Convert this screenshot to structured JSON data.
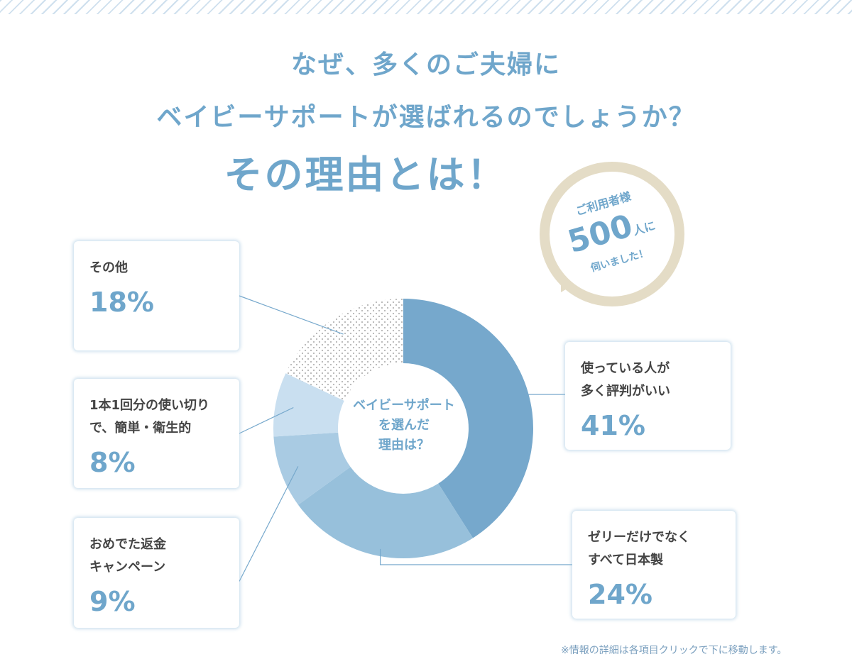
{
  "heading": {
    "line1": "なぜ、多くのご夫婦に",
    "line2": "ベイビーサポートが選ばれるのでしょうか？",
    "line3": "その理由とは！"
  },
  "badge": {
    "line1": "ご利用者様",
    "number": "500",
    "unit": "人に",
    "line3": "伺いました！"
  },
  "chart_data": {
    "type": "pie",
    "center_label": "ベイビーサポート\nを選んだ\n理由は？",
    "slices": [
      {
        "label": "使っている人が\n多く評判がいい",
        "value": 41,
        "display": "41%",
        "color": "#76a8cc",
        "pattern": "solid"
      },
      {
        "label": "ゼリーだけでなく\nすべて日本製",
        "value": 24,
        "display": "24%",
        "color": "#97c0db",
        "pattern": "solid"
      },
      {
        "label": "おめでた返金\nキャンペーン",
        "value": 9,
        "display": "9%",
        "color": "#a9cbe3",
        "pattern": "solid"
      },
      {
        "label": "1本1回分の使い切り\nで、簡単・衛生的",
        "value": 8,
        "display": "8%",
        "color": "#c9dff0",
        "pattern": "solid"
      },
      {
        "label": "その他",
        "value": 18,
        "display": "18%",
        "color": "#b5b5b5",
        "pattern": "dots"
      }
    ]
  },
  "footnote": "※情報の詳細は各項目クリックで下に移動します。"
}
